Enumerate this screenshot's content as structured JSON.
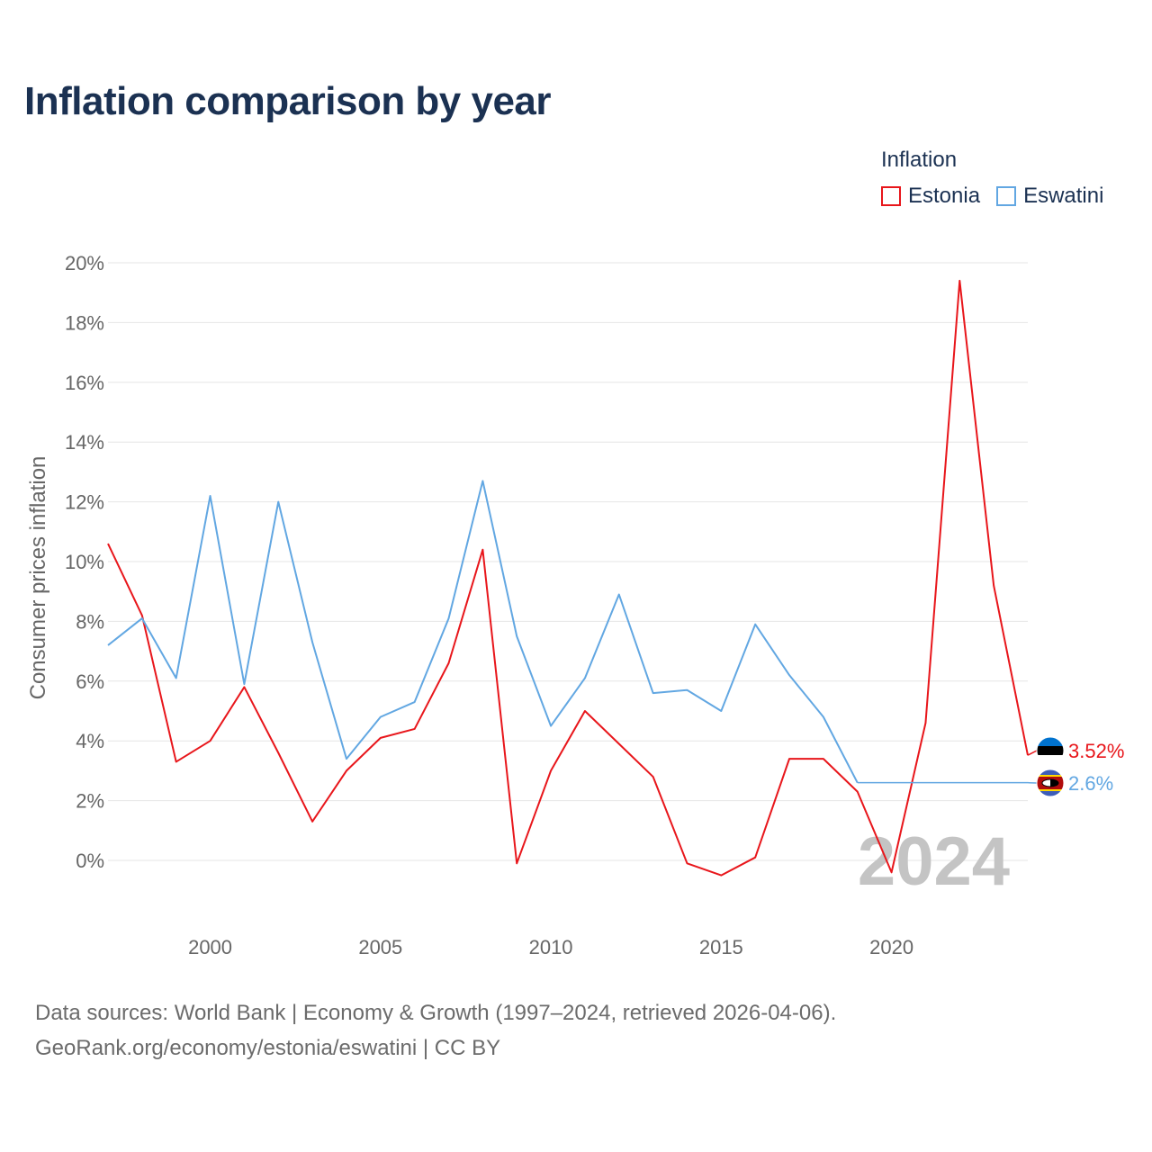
{
  "title": "Inflation comparison by year",
  "legend": {
    "title": "Inflation",
    "items": [
      {
        "label": "Estonia",
        "color": "#e8161b"
      },
      {
        "label": "Eswatini",
        "color": "#62a7e2"
      }
    ]
  },
  "chart_data": {
    "type": "line",
    "title": "Inflation comparison by year",
    "ylabel": "Consumer prices inflation",
    "xlabel": "",
    "x": [
      1997,
      1998,
      1999,
      2000,
      2001,
      2002,
      2003,
      2004,
      2005,
      2006,
      2007,
      2008,
      2009,
      2010,
      2011,
      2012,
      2013,
      2014,
      2015,
      2016,
      2017,
      2018,
      2019,
      2020,
      2021,
      2022,
      2023,
      2024
    ],
    "xlim": [
      1997,
      2024
    ],
    "xticks": [
      2000,
      2005,
      2010,
      2015,
      2020
    ],
    "ylim": [
      -2,
      20
    ],
    "yticks": [
      0,
      2,
      4,
      6,
      8,
      10,
      12,
      14,
      16,
      18,
      20
    ],
    "ytick_labels": [
      "0%",
      "2%",
      "4%",
      "6%",
      "8%",
      "10%",
      "12%",
      "14%",
      "16%",
      "18%",
      "20%"
    ],
    "series": [
      {
        "name": "Estonia",
        "color": "#e8161b",
        "values": [
          10.6,
          8.2,
          3.3,
          4.0,
          5.8,
          3.6,
          1.3,
          3.0,
          4.1,
          4.4,
          6.6,
          10.4,
          -0.1,
          3.0,
          5.0,
          3.9,
          2.8,
          -0.1,
          -0.5,
          0.1,
          3.4,
          3.4,
          2.3,
          -0.4,
          4.6,
          19.4,
          9.2,
          3.52
        ]
      },
      {
        "name": "Eswatini",
        "color": "#62a7e2",
        "values": [
          7.2,
          8.1,
          6.1,
          12.2,
          5.9,
          12.0,
          7.3,
          3.4,
          4.8,
          5.3,
          8.1,
          12.7,
          7.5,
          4.5,
          6.1,
          8.9,
          5.6,
          5.7,
          5.0,
          7.9,
          6.2,
          4.8,
          2.6,
          null,
          null,
          null,
          null,
          2.6
        ]
      }
    ],
    "end_labels": [
      {
        "series": "Estonia",
        "text": "3.52%",
        "value": 3.52
      },
      {
        "series": "Eswatini",
        "text": "2.6%",
        "value": 2.6
      }
    ],
    "year_watermark": "2024",
    "grid": true
  },
  "source": {
    "line1": "Data sources: World Bank | Economy & Growth (1997–2024, retrieved 2026-04-06).",
    "line2": "GeoRank.org/economy/estonia/eswatini | CC BY"
  }
}
